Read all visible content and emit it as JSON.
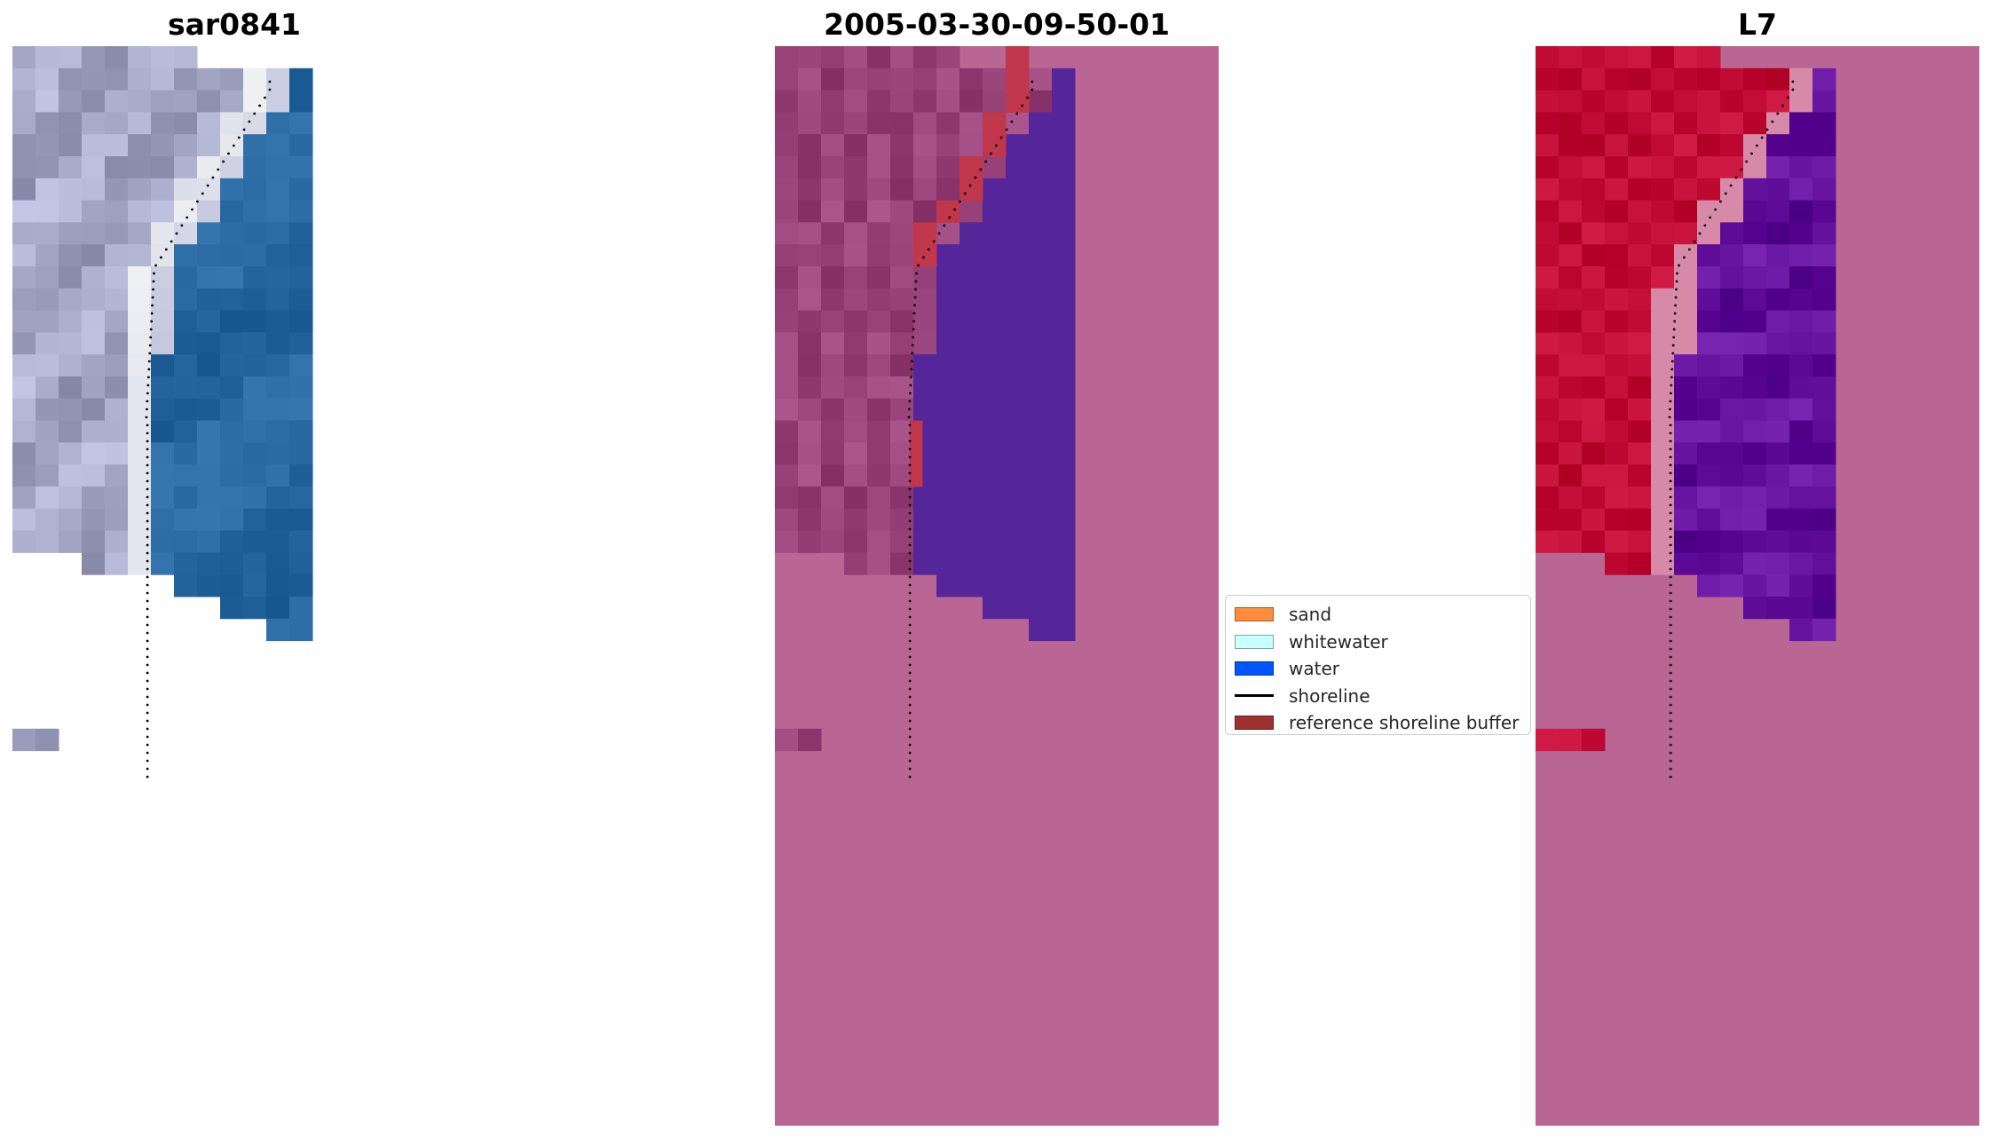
{
  "panels": [
    {
      "title": "sar0841"
    },
    {
      "title": "2005-03-30-09-50-01"
    },
    {
      "title": "L7"
    }
  ],
  "legend": {
    "entries": [
      {
        "label": "sand",
        "kind": "patch",
        "color": "#ff8c3c"
      },
      {
        "label": "whitewater",
        "kind": "patch",
        "color": "#c8ffff"
      },
      {
        "label": "water",
        "kind": "patch",
        "color": "#0055ff"
      },
      {
        "label": "shoreline",
        "kind": "line",
        "color": "#000000"
      },
      {
        "label": "reference shoreline buffer",
        "kind": "patch",
        "color": "#9e3030"
      }
    ]
  },
  "colors": {
    "rgb_land": "#b4b6d6",
    "rgb_beach": "#eef0f2",
    "rgb_water": "#2f6fa8",
    "nodata_pink": "#ba6694",
    "classified_land": "#a24c84",
    "classified_water": "#55259a",
    "reference_buffer": "#c0364a",
    "mndwi_land": "#c8143c",
    "mndwi_transition": "#d68aa8",
    "mndwi_water": "#6c1aa6",
    "shoreline": "#000000"
  }
}
